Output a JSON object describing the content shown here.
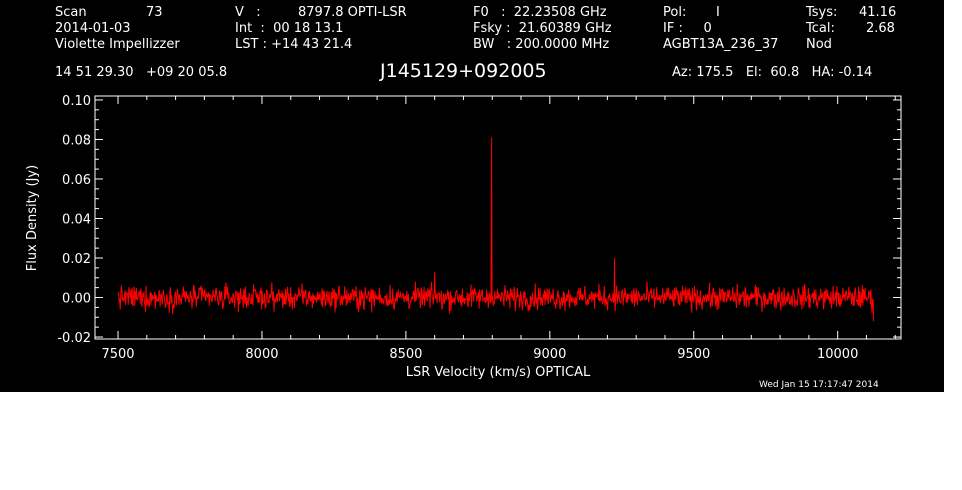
{
  "header": {
    "scan_label": "Scan",
    "scan_value": "73",
    "date": "2014-01-03",
    "observer": "Violette Impellizzer",
    "v_label": "V   :",
    "v_value": "8797.8 OPTI-LSR",
    "int_line": "Int  :  00 18 13.1",
    "lst_line": "LST : +14 43 21.4",
    "f0_line": "F0   :  22.23508 GHz",
    "fsky_line": "Fsky :  21.60389 GHz",
    "bw_line": "BW   : 200.0000 MHz",
    "pol_label": "Pol:",
    "pol_value": "I",
    "if_line": "IF :     0",
    "project": "AGBT13A_236_37",
    "tsys_label": "Tsys:",
    "tsys_value": "41.16",
    "tcal_label": "Tcal:",
    "tcal_value": "2.68",
    "mode": "Nod",
    "coords": "14 51 29.30   +09 20 05.8",
    "source": "J145129+092005",
    "pointing": "Az: 175.5   El:  60.8   HA: -0.14"
  },
  "timestamp": "Wed Jan 15 17:17:47 2014",
  "colors": {
    "background": "#000000",
    "axes": "#ffffff",
    "trace": "#ff0000"
  },
  "chart_data": {
    "type": "line",
    "title": "J145129+092005",
    "xlabel": "LSR Velocity (km/s) OPTICAL",
    "ylabel": "Flux Density (Jy)",
    "xlim": [
      7420,
      10220
    ],
    "ylim": [
      -0.021,
      0.102
    ],
    "xticks": [
      7500,
      8000,
      8500,
      9000,
      9500,
      10000
    ],
    "xtick_labels": [
      "7500",
      "8000",
      "8500",
      "9000",
      "9500",
      "10000"
    ],
    "yticks": [
      -0.02,
      0.0,
      0.02,
      0.04,
      0.06,
      0.08,
      0.1
    ],
    "ytick_labels": [
      "-0.02",
      "0.00",
      "0.02",
      "0.04",
      "0.06",
      "0.08",
      "0.10"
    ],
    "grid": false,
    "series": [
      {
        "color": "#ff0000",
        "x_range": [
          7500,
          10125
        ],
        "noise_rms_jy": 0.003,
        "noise_peak_jy": 0.01,
        "features": [
          {
            "x": 8797.8,
            "y": 0.081
          },
          {
            "x": 9225,
            "y": 0.02
          },
          {
            "x": 8600,
            "y": 0.013
          },
          {
            "x": 10125,
            "y": -0.012
          }
        ]
      }
    ]
  }
}
